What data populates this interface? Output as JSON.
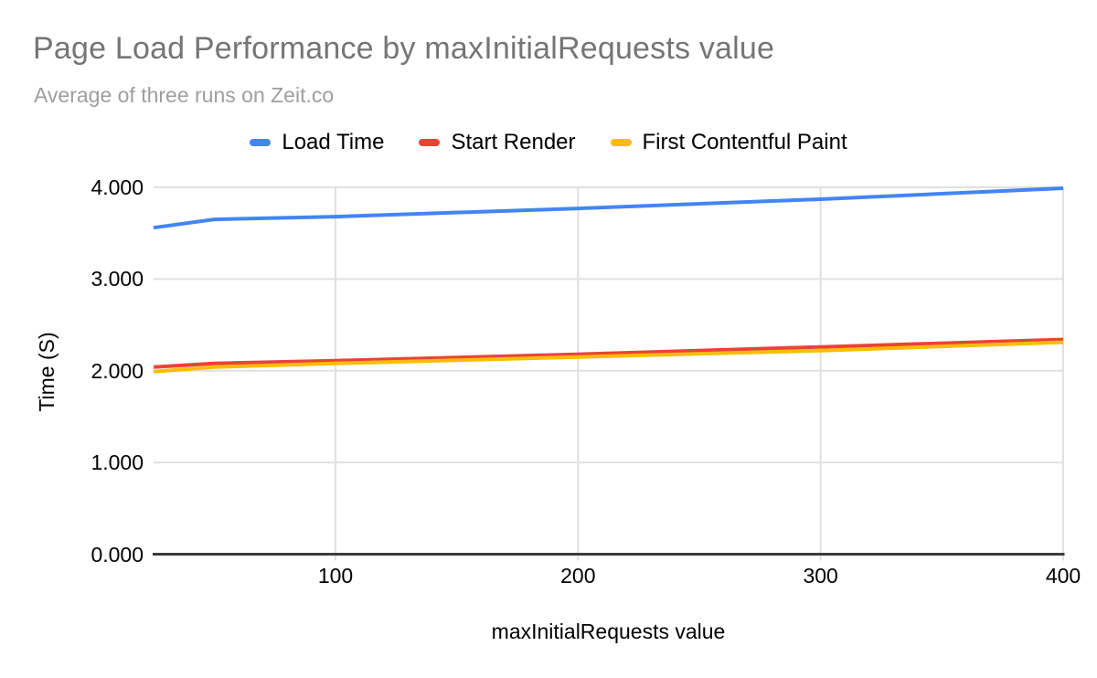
{
  "page": {
    "background": "#ffffff"
  },
  "header": {
    "title": "Page Load Performance by maxInitialRequests value",
    "subtitle": "Average of three runs on Zeit.co"
  },
  "chart_data": {
    "type": "line",
    "title": "Page Load Performance by maxInitialRequests value",
    "subtitle": "Average of three runs on Zeit.co",
    "xlabel": "maxInitialRequests value",
    "ylabel": "Time (S)",
    "x": [
      25,
      50,
      100,
      200,
      300,
      400
    ],
    "series": [
      {
        "name": "Load Time",
        "color": "#4285F4",
        "values": [
          3.56,
          3.65,
          3.68,
          3.77,
          3.87,
          3.99
        ]
      },
      {
        "name": "Start Render",
        "color": "#EA4335",
        "values": [
          2.04,
          2.08,
          2.11,
          2.18,
          2.26,
          2.34
        ]
      },
      {
        "name": "First Contentful Paint",
        "color": "#FBBC04",
        "values": [
          1.99,
          2.04,
          2.08,
          2.15,
          2.22,
          2.31
        ]
      }
    ],
    "xlim": [
      25,
      400
    ],
    "ylim": [
      0,
      4
    ],
    "x_ticks": [
      {
        "value": 100,
        "label": "100"
      },
      {
        "value": 200,
        "label": "200"
      },
      {
        "value": 300,
        "label": "300"
      },
      {
        "value": 400,
        "label": "400"
      }
    ],
    "y_ticks": [
      {
        "value": 0,
        "label": "0.000"
      },
      {
        "value": 1,
        "label": "1.000"
      },
      {
        "value": 2,
        "label": "2.000"
      },
      {
        "value": 3,
        "label": "3.000"
      },
      {
        "value": 4,
        "label": "4.000"
      }
    ],
    "grid": true,
    "legend_position": "top",
    "colors": {
      "gridline": "#e0e0e0",
      "axis_line": "#3b3b3b",
      "tick_label": "#000000",
      "title": "#757575",
      "subtitle": "#9e9e9e"
    }
  }
}
